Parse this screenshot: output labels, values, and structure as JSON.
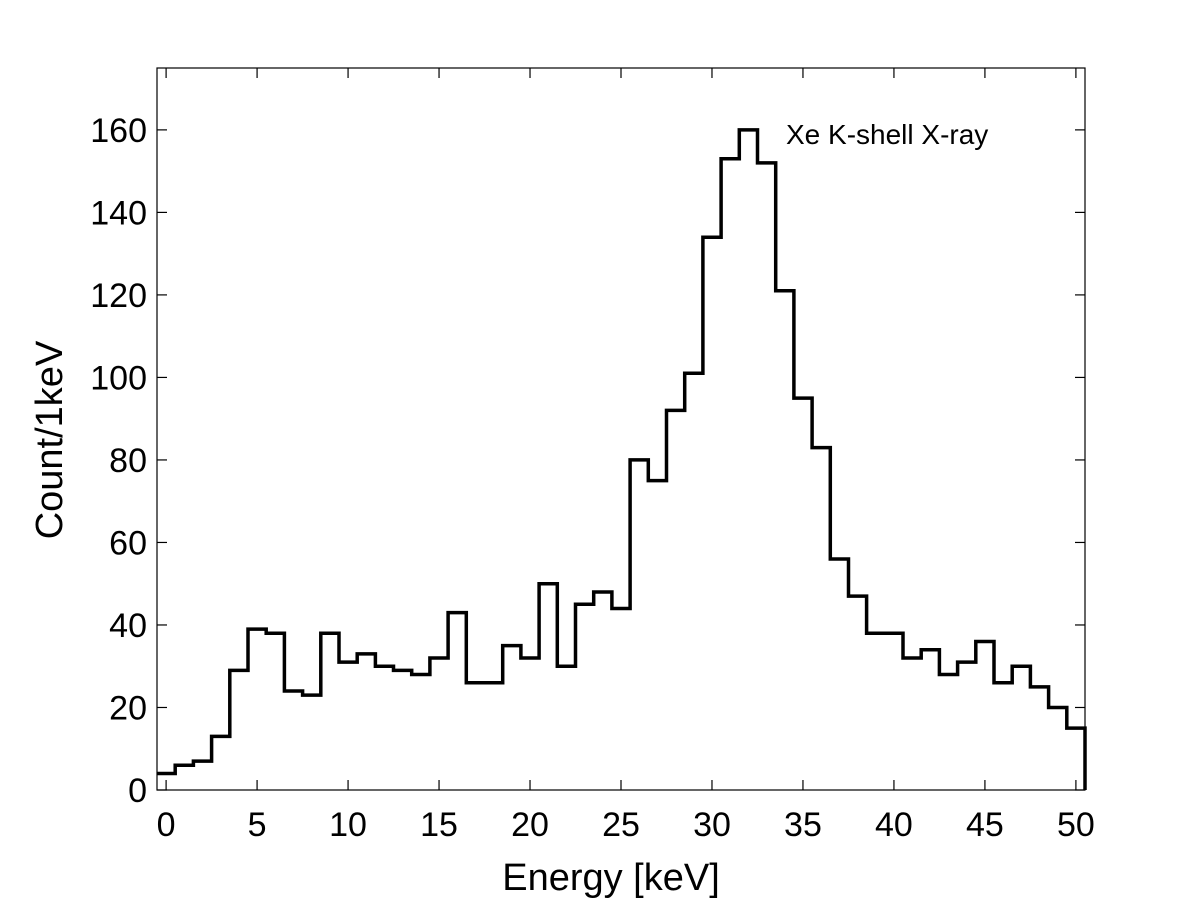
{
  "chart_data": {
    "type": "histogram",
    "xlabel": "Energy [keV]",
    "ylabel": "Count/1keV",
    "annotation": "Xe K-shell X-ray",
    "xlim": [
      -0.5,
      50.5
    ],
    "ylim": [
      0,
      175
    ],
    "xticks": [
      "0",
      "5",
      "10",
      "15",
      "20",
      "25",
      "30",
      "35",
      "40",
      "45",
      "50"
    ],
    "yticks": [
      "0",
      "20",
      "40",
      "60",
      "80",
      "100",
      "120",
      "140",
      "160"
    ],
    "grid": false,
    "line_color": "#000000",
    "bin_width_keV": 1,
    "x": [
      0,
      1,
      2,
      3,
      4,
      5,
      6,
      7,
      8,
      9,
      10,
      11,
      12,
      13,
      14,
      15,
      16,
      17,
      18,
      19,
      20,
      21,
      22,
      23,
      24,
      25,
      26,
      27,
      28,
      29,
      30,
      31,
      32,
      33,
      34,
      35,
      36,
      37,
      38,
      39,
      40,
      41,
      42,
      43,
      44,
      45,
      46,
      47,
      48,
      49,
      50
    ],
    "values": [
      4,
      6,
      7,
      13,
      29,
      39,
      38,
      24,
      23,
      38,
      31,
      33,
      30,
      29,
      28,
      32,
      43,
      26,
      26,
      35,
      32,
      50,
      30,
      45,
      48,
      44,
      80,
      75,
      92,
      101,
      134,
      153,
      160,
      152,
      121,
      95,
      83,
      56,
      47,
      38,
      38,
      32,
      34,
      28,
      31,
      36,
      26,
      30,
      25,
      20,
      15
    ]
  }
}
